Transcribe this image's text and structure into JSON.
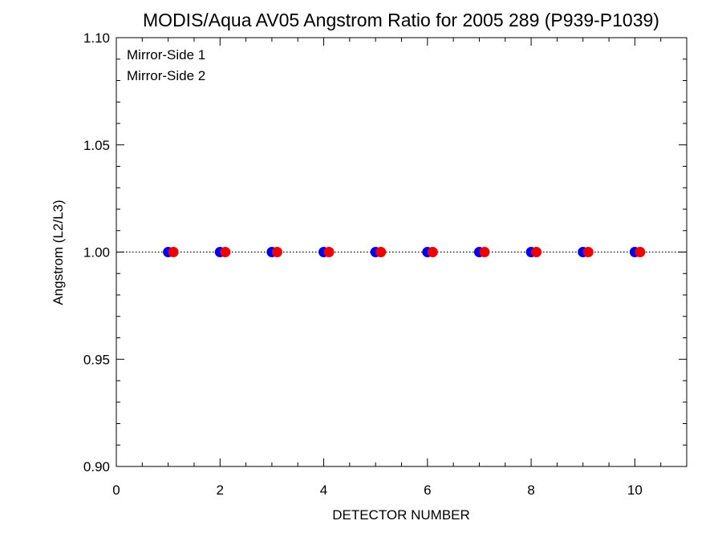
{
  "chart_data": {
    "type": "scatter",
    "title": "MODIS/Aqua AV05 Angstrom Ratio for 2005 289 (P939-P1039)",
    "xlabel": "DETECTOR NUMBER",
    "ylabel": "Angstrom (L2/L3)",
    "xlim": [
      0,
      11
    ],
    "ylim": [
      0.9,
      1.1
    ],
    "x_ticks": [
      0,
      2,
      4,
      6,
      8,
      10
    ],
    "x_tick_labels": [
      "0",
      "2",
      "4",
      "6",
      "8",
      "10"
    ],
    "y_ticks": [
      0.9,
      0.95,
      1.0,
      1.05,
      1.1
    ],
    "y_tick_labels": [
      "0.90",
      "0.95",
      "1.00",
      "1.05",
      "1.10"
    ],
    "reference_line": {
      "y": 1.0,
      "style": "dotted"
    },
    "legend_position": "top-left",
    "series": [
      {
        "name": "Mirror-Side 1",
        "color": "#0000ee",
        "x": [
          1,
          2,
          3,
          4,
          5,
          6,
          7,
          8,
          9,
          10
        ],
        "y": [
          1.0,
          1.0,
          1.0,
          1.0,
          1.0,
          1.0,
          1.0,
          1.0,
          1.0,
          1.0
        ]
      },
      {
        "name": "Mirror-Side 2",
        "color": "#ee0000",
        "x": [
          1.1,
          2.1,
          3.1,
          4.1,
          5.1,
          6.1,
          7.1,
          8.1,
          9.1,
          10.1
        ],
        "y": [
          1.0,
          1.0,
          1.0,
          1.0,
          1.0,
          1.0,
          1.0,
          1.0,
          1.0,
          1.0
        ]
      }
    ]
  }
}
